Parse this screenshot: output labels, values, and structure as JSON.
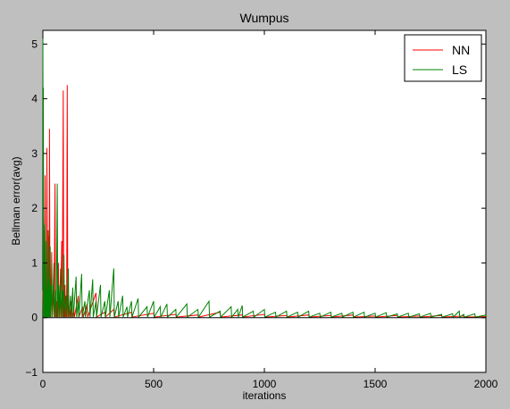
{
  "chart_data": {
    "type": "line",
    "title": "Wumpus",
    "xlabel": "iterations",
    "ylabel": "Bellman error(avg)",
    "xlim": [
      0,
      2000
    ],
    "ylim": [
      -1,
      5.25
    ],
    "xticks": [
      0,
      500,
      1000,
      1500,
      2000
    ],
    "yticks": [
      -1,
      0,
      1,
      2,
      3,
      4,
      5
    ],
    "grid": false,
    "legend_position": "top-right",
    "series": [
      {
        "name": "NN",
        "color": "#ff0000",
        "peaks": [
          [
            0,
            0.5
          ],
          [
            3,
            1.8
          ],
          [
            6,
            0.4
          ],
          [
            10,
            2.6
          ],
          [
            14,
            0.3
          ],
          [
            18,
            3.1
          ],
          [
            22,
            0.6
          ],
          [
            26,
            1.5
          ],
          [
            30,
            3.45
          ],
          [
            34,
            0.4
          ],
          [
            40,
            1.2
          ],
          [
            48,
            0.5
          ],
          [
            55,
            2.45
          ],
          [
            62,
            0.3
          ],
          [
            70,
            1.0
          ],
          [
            78,
            0.4
          ],
          [
            85,
            1.4
          ],
          [
            92,
            4.15
          ],
          [
            96,
            0.3
          ],
          [
            100,
            0.6
          ],
          [
            105,
            0.2
          ],
          [
            110,
            4.25
          ],
          [
            114,
            0.4
          ],
          [
            120,
            0.2
          ],
          [
            130,
            0.3
          ],
          [
            140,
            0.15
          ],
          [
            160,
            0.4
          ],
          [
            180,
            0.2
          ],
          [
            200,
            0.25
          ],
          [
            240,
            0.45
          ],
          [
            280,
            0.1
          ],
          [
            320,
            0.15
          ],
          [
            400,
            0.1
          ],
          [
            500,
            0.08
          ],
          [
            600,
            0.06
          ],
          [
            700,
            0.05
          ],
          [
            800,
            0.1
          ],
          [
            900,
            0.05
          ],
          [
            1000,
            0.06
          ],
          [
            1100,
            0.04
          ],
          [
            1200,
            0.05
          ],
          [
            1300,
            0.04
          ],
          [
            1400,
            0.05
          ],
          [
            1500,
            0.03
          ],
          [
            1600,
            0.04
          ],
          [
            1700,
            0.03
          ],
          [
            1800,
            0.04
          ],
          [
            1900,
            0.03
          ],
          [
            2000,
            0.02
          ]
        ]
      },
      {
        "name": "LS",
        "color": "#008000",
        "peaks": [
          [
            0,
            5.1
          ],
          [
            2,
            4.2
          ],
          [
            4,
            1.6
          ],
          [
            6,
            0.8
          ],
          [
            9,
            1.7
          ],
          [
            12,
            0.6
          ],
          [
            16,
            1.4
          ],
          [
            20,
            0.5
          ],
          [
            24,
            1.6
          ],
          [
            28,
            0.7
          ],
          [
            33,
            1.3
          ],
          [
            40,
            0.6
          ],
          [
            50,
            1.0
          ],
          [
            58,
            0.5
          ],
          [
            65,
            2.45
          ],
          [
            72,
            0.6
          ],
          [
            80,
            0.9
          ],
          [
            88,
            0.5
          ],
          [
            95,
            1.15
          ],
          [
            105,
            0.4
          ],
          [
            115,
            0.9
          ],
          [
            125,
            0.4
          ],
          [
            135,
            0.55
          ],
          [
            150,
            0.75
          ],
          [
            160,
            0.3
          ],
          [
            175,
            0.8
          ],
          [
            190,
            0.3
          ],
          [
            210,
            0.5
          ],
          [
            225,
            0.7
          ],
          [
            240,
            0.3
          ],
          [
            260,
            0.6
          ],
          [
            280,
            0.3
          ],
          [
            300,
            0.5
          ],
          [
            320,
            0.9
          ],
          [
            340,
            0.3
          ],
          [
            360,
            0.4
          ],
          [
            380,
            0.2
          ],
          [
            400,
            0.3
          ],
          [
            430,
            0.35
          ],
          [
            470,
            0.2
          ],
          [
            500,
            0.3
          ],
          [
            530,
            0.2
          ],
          [
            560,
            0.25
          ],
          [
            600,
            0.15
          ],
          [
            650,
            0.25
          ],
          [
            700,
            0.15
          ],
          [
            750,
            0.3
          ],
          [
            800,
            0.12
          ],
          [
            850,
            0.2
          ],
          [
            880,
            0.15
          ],
          [
            900,
            0.22
          ],
          [
            950,
            0.12
          ],
          [
            1000,
            0.15
          ],
          [
            1050,
            0.1
          ],
          [
            1100,
            0.12
          ],
          [
            1150,
            0.1
          ],
          [
            1200,
            0.12
          ],
          [
            1250,
            0.08
          ],
          [
            1300,
            0.1
          ],
          [
            1350,
            0.08
          ],
          [
            1400,
            0.1
          ],
          [
            1450,
            0.1
          ],
          [
            1500,
            0.08
          ],
          [
            1550,
            0.09
          ],
          [
            1600,
            0.07
          ],
          [
            1650,
            0.08
          ],
          [
            1700,
            0.07
          ],
          [
            1750,
            0.08
          ],
          [
            1800,
            0.06
          ],
          [
            1850,
            0.07
          ],
          [
            1880,
            0.12
          ],
          [
            1900,
            0.06
          ],
          [
            1950,
            0.07
          ],
          [
            2000,
            0.05
          ]
        ]
      }
    ]
  }
}
